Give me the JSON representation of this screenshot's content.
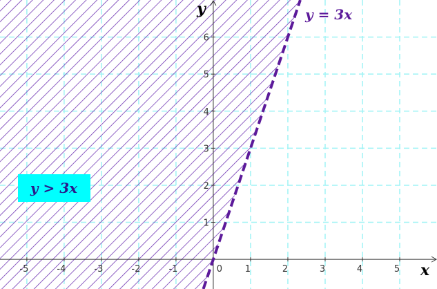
{
  "chart_data": {
    "type": "line",
    "x_label": "x",
    "y_label": "y",
    "x": [
      -0.267,
      2.333
    ],
    "series": [
      {
        "name": "y = 3x",
        "color": "#5c1a9a",
        "values": [
          -0.8,
          7
        ],
        "dashed": true
      }
    ],
    "region_label": "y > 3x",
    "region_color": "#6a2db0",
    "region_label_bg": "#00ffff",
    "xlim": [
      -5.72,
      6
    ],
    "ylim": [
      -0.8,
      7
    ],
    "xticks": [
      -5,
      -4,
      -3,
      -2,
      -1,
      0,
      1,
      2,
      3,
      4,
      5
    ],
    "yticks": [
      1,
      2,
      3,
      4,
      5,
      6
    ],
    "grid": true,
    "grid_color": "#9ff3f5"
  }
}
